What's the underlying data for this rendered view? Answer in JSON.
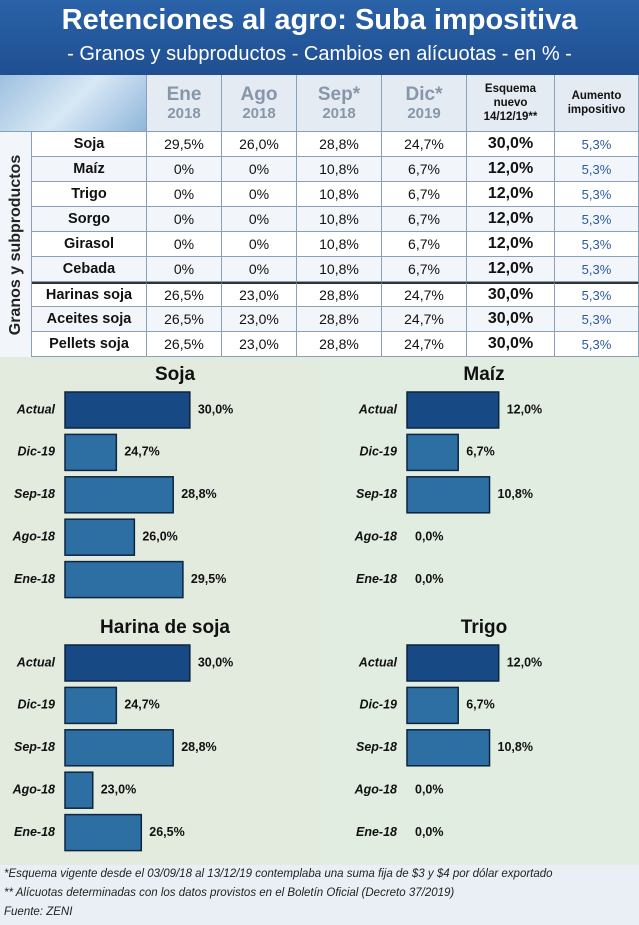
{
  "header": {
    "title": "Retenciones al agro: Suba impositiva",
    "subtitle": "- Granos y subproductos - Cambios en alícuotas - en % -"
  },
  "table": {
    "columns": [
      {
        "label": "Ene",
        "year": "2018"
      },
      {
        "label": "Ago",
        "year": "2018"
      },
      {
        "label": "Sep*",
        "year": "2018"
      },
      {
        "label": "Dic*",
        "year": "2019"
      },
      {
        "label": "Esquema nuevo 14/12/19**"
      },
      {
        "label": "Aumento impositivo"
      }
    ],
    "group_label": "Granos y subproductos",
    "rows": [
      [
        "Soja",
        "29,5%",
        "26,0%",
        "28,8%",
        "24,7%",
        "30,0%",
        "5,3%"
      ],
      [
        "Maíz",
        "0%",
        "0%",
        "10,8%",
        "6,7%",
        "12,0%",
        "5,3%"
      ],
      [
        "Trigo",
        "0%",
        "0%",
        "10,8%",
        "6,7%",
        "12,0%",
        "5,3%"
      ],
      [
        "Sorgo",
        "0%",
        "0%",
        "10,8%",
        "6,7%",
        "12,0%",
        "5,3%"
      ],
      [
        "Girasol",
        "0%",
        "0%",
        "10,8%",
        "6,7%",
        "12,0%",
        "5,3%"
      ],
      [
        "Cebada",
        "0%",
        "0%",
        "10,8%",
        "6,7%",
        "12,0%",
        "5,3%"
      ],
      [
        "Harinas soja",
        "26,5%",
        "23,0%",
        "28,8%",
        "24,7%",
        "30,0%",
        "5,3%"
      ],
      [
        "Aceites soja",
        "26,5%",
        "23,0%",
        "28,8%",
        "24,7%",
        "30,0%",
        "5,3%"
      ],
      [
        "Pellets soja",
        "26,5%",
        "23,0%",
        "28,8%",
        "24,7%",
        "30,0%",
        "5,3%"
      ]
    ]
  },
  "chart_data": [
    {
      "type": "bar",
      "title": "Soja",
      "categories": [
        "Actual",
        "Dic-19",
        "Sep-18",
        "Ago-18",
        "Ene-18"
      ],
      "values": [
        30.0,
        24.7,
        28.8,
        26.0,
        29.5
      ],
      "value_labels": [
        "30,0%",
        "24,7%",
        "28,8%",
        "26,0%",
        "29,5%"
      ],
      "colors": [
        "#174a85",
        "#2d6fa3",
        "#2d6fa3",
        "#2d6fa3",
        "#2d6fa3"
      ],
      "xlim": [
        21,
        30.3
      ]
    },
    {
      "type": "bar",
      "title": "Maíz",
      "categories": [
        "Actual",
        "Dic-19",
        "Sep-18",
        "Ago-18",
        "Ene-18"
      ],
      "values": [
        12.0,
        6.7,
        10.8,
        0.0,
        0.0
      ],
      "value_labels": [
        "12,0%",
        "6,7%",
        "10,8%",
        "0,0%",
        "0,0%"
      ],
      "colors": [
        "#174a85",
        "#2d6fa3",
        "#2d6fa3",
        "#2d6fa3",
        "#2d6fa3"
      ],
      "xlim": [
        0,
        12.3
      ]
    },
    {
      "type": "bar",
      "title": "Harina de soja",
      "categories": [
        "Actual",
        "Dic-19",
        "Sep-18",
        "Ago-18",
        "Ene-18"
      ],
      "values": [
        30.0,
        24.7,
        28.8,
        23.0,
        26.5
      ],
      "value_labels": [
        "30,0%",
        "24,7%",
        "28,8%",
        "23,0%",
        "26,5%"
      ],
      "colors": [
        "#174a85",
        "#2d6fa3",
        "#2d6fa3",
        "#2d6fa3",
        "#2d6fa3"
      ],
      "xlim": [
        21,
        30.3
      ]
    },
    {
      "type": "bar",
      "title": "Trigo",
      "categories": [
        "Actual",
        "Dic-19",
        "Sep-18",
        "Ago-18",
        "Ene-18"
      ],
      "values": [
        12.0,
        6.7,
        10.8,
        0.0,
        0.0
      ],
      "value_labels": [
        "12,0%",
        "6,7%",
        "10,8%",
        "0,0%",
        "0,0%"
      ],
      "colors": [
        "#174a85",
        "#2d6fa3",
        "#2d6fa3",
        "#2d6fa3",
        "#2d6fa3"
      ],
      "xlim": [
        0,
        12.3
      ]
    }
  ],
  "footnotes": [
    "*Esquema vigente desde el 03/09/18 al 13/12/19 contemplaba una suma fija de $3 y $4 por dólar exportado",
    "** Alícuotas determinadas con los datos provistos en el Boletín Oficial (Decreto 37/2019)",
    "Fuente: ZENI"
  ]
}
